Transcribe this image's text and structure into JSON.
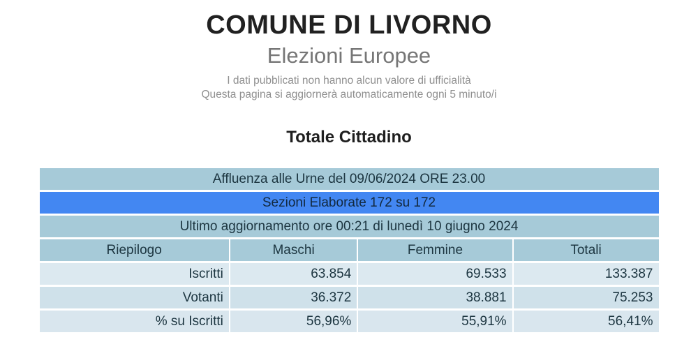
{
  "header": {
    "title": "COMUNE DI LIVORNO",
    "subtitle": "Elezioni Europee",
    "disclaimer_line1": "I dati pubblicati non hanno alcun valore di ufficialità",
    "disclaimer_line2": "Questa pagina si aggiornerà automaticamente ogni 5 minuto/i"
  },
  "section": {
    "title": "Totale Cittadino"
  },
  "turnout_table": {
    "affluenza_row": "Affluenza alle Urne del 09/06/2024 ORE 23.00",
    "sezioni_row": "Sezioni Elaborate 172 su 172",
    "aggiornamento_row": "Ultimo aggiornamento ore 00:21 di lunedì 10 giugno 2024",
    "columns": [
      "Riepilogo",
      "Maschi",
      "Femmine",
      "Totali"
    ],
    "rows": [
      {
        "label": "Iscritti",
        "maschi": "63.854",
        "femmine": "69.533",
        "totali": "133.387"
      },
      {
        "label": "Votanti",
        "maschi": "36.372",
        "femmine": "38.881",
        "totali": "75.253"
      },
      {
        "label": "% su Iscritti",
        "maschi": "56,96%",
        "femmine": "55,91%",
        "totali": "56,41%"
      }
    ]
  },
  "colors": {
    "band_light_blue": "#a6cad8",
    "band_royal_blue": "#4387f2",
    "data_row_light": "#dce9f0",
    "data_row_mid": "#cfe1ea",
    "data_row_light2": "#d9e6ee"
  }
}
